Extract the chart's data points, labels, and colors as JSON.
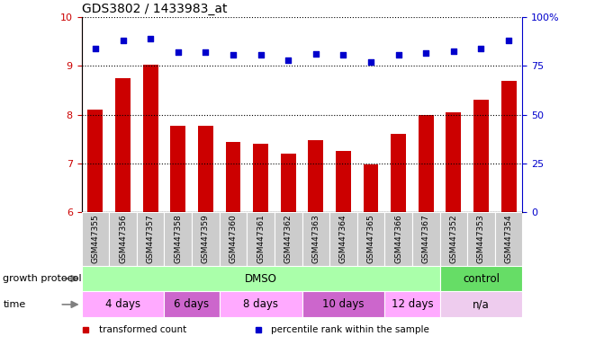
{
  "title": "GDS3802 / 1433983_at",
  "samples": [
    "GSM447355",
    "GSM447356",
    "GSM447357",
    "GSM447358",
    "GSM447359",
    "GSM447360",
    "GSM447361",
    "GSM447362",
    "GSM447363",
    "GSM447364",
    "GSM447365",
    "GSM447366",
    "GSM447367",
    "GSM447352",
    "GSM447353",
    "GSM447354"
  ],
  "bar_values": [
    8.1,
    8.75,
    9.02,
    7.78,
    7.78,
    7.45,
    7.4,
    7.2,
    7.48,
    7.25,
    6.98,
    7.6,
    8.0,
    8.05,
    8.3,
    8.7
  ],
  "scatter_values": [
    9.35,
    9.52,
    9.57,
    9.28,
    9.28,
    9.23,
    9.23,
    9.12,
    9.25,
    9.23,
    9.08,
    9.23,
    9.27,
    9.31,
    9.35,
    9.52
  ],
  "ylim_left": [
    6,
    10
  ],
  "ylim_right": [
    0,
    100
  ],
  "yticks_left": [
    6,
    7,
    8,
    9,
    10
  ],
  "yticks_right": [
    0,
    25,
    50,
    75,
    100
  ],
  "bar_color": "#cc0000",
  "scatter_color": "#0000cc",
  "bg_color": "#ffffff",
  "axis_color_left": "#cc0000",
  "axis_color_right": "#0000cc",
  "tick_label_bg": "#cccccc",
  "growth_protocol_label": "growth protocol",
  "growth_protocol_groups": [
    {
      "label": "DMSO",
      "start": 0,
      "end": 13,
      "color": "#aaffaa"
    },
    {
      "label": "control",
      "start": 13,
      "end": 16,
      "color": "#66dd66"
    }
  ],
  "time_label": "time",
  "time_groups": [
    {
      "label": "4 days",
      "start": 0,
      "end": 3,
      "color": "#ffaaff"
    },
    {
      "label": "6 days",
      "start": 3,
      "end": 5,
      "color": "#cc66cc"
    },
    {
      "label": "8 days",
      "start": 5,
      "end": 8,
      "color": "#ffaaff"
    },
    {
      "label": "10 days",
      "start": 8,
      "end": 11,
      "color": "#cc66cc"
    },
    {
      "label": "12 days",
      "start": 11,
      "end": 13,
      "color": "#ffaaff"
    },
    {
      "label": "n/a",
      "start": 13,
      "end": 16,
      "color": "#eeccee"
    }
  ],
  "legend_items": [
    {
      "label": "transformed count",
      "color": "#cc0000"
    },
    {
      "label": "percentile rank within the sample",
      "color": "#0000cc"
    }
  ]
}
